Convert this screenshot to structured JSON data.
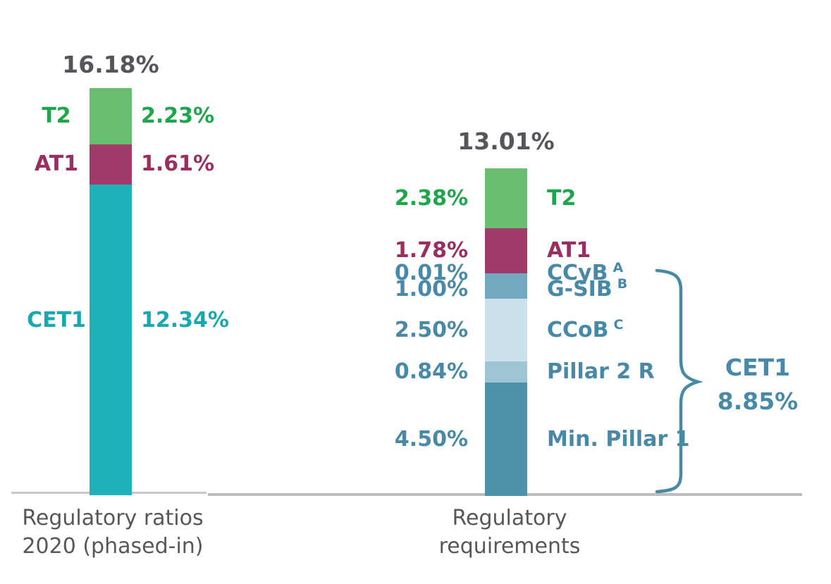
{
  "chart_data": [
    {
      "type": "bar",
      "title": "16.18%",
      "x_axis_label_lines": [
        "Regulatory ratios",
        "2020 (phased-in)"
      ],
      "unit": "%",
      "ylim": [
        0,
        16.18
      ],
      "grid": false,
      "segments_bottom_to_top": [
        {
          "name": "CET1",
          "value": 12.34,
          "value_label": "12.34%",
          "bar_color": "#1eb3bc",
          "label_color": "#18a8b2"
        },
        {
          "name": "AT1",
          "value": 1.61,
          "value_label": "1.61%",
          "bar_color": "#a23a6a",
          "label_color": "#992e61"
        },
        {
          "name": "T2",
          "value": 2.23,
          "value_label": "2.23%",
          "bar_color": "#68be70",
          "label_color": "#1ea64a"
        }
      ]
    },
    {
      "type": "bar",
      "title": "13.01%",
      "x_axis_label_lines": [
        "Regulatory",
        "requirements"
      ],
      "unit": "%",
      "ylim": [
        0,
        13.01
      ],
      "grid": false,
      "segments_bottom_to_top": [
        {
          "name": "Min. Pillar 1",
          "value": 4.5,
          "value_label": "4.50%",
          "bar_color": "#4e92aa",
          "label_color": "#4789a7"
        },
        {
          "name": "Pillar 2 R",
          "value": 0.84,
          "value_label": "0.84%",
          "bar_color": "#9dc5d3",
          "label_color": "#4789a7"
        },
        {
          "name": "CCoB",
          "superscript": "C",
          "value": 2.5,
          "value_label": "2.50%",
          "bar_color": "#cce2ea",
          "label_color": "#4789a7"
        },
        {
          "name": "G-SIB",
          "superscript": "B",
          "value": 1.0,
          "value_label": "1.00%",
          "bar_color": "#74aabf",
          "label_color": "#4789a7"
        },
        {
          "name": "CCyB",
          "superscript": "A",
          "value": 0.01,
          "value_label": "0.01%",
          "bar_color": "#74aabf",
          "label_color": "#4789a7"
        },
        {
          "name": "AT1",
          "value": 1.78,
          "value_label": "1.78%",
          "bar_color": "#a23a6a",
          "label_color": "#992e61"
        },
        {
          "name": "T2",
          "value": 2.38,
          "value_label": "2.38%",
          "bar_color": "#68be70",
          "label_color": "#1ea64a"
        }
      ],
      "annotation": {
        "label": "CET1",
        "value_label": "8.85%",
        "covers": [
          "Min. Pillar 1",
          "Pillar 2 R",
          "CCoB",
          "G-SIB",
          "CCyB"
        ],
        "color": "#4789a7"
      }
    }
  ]
}
